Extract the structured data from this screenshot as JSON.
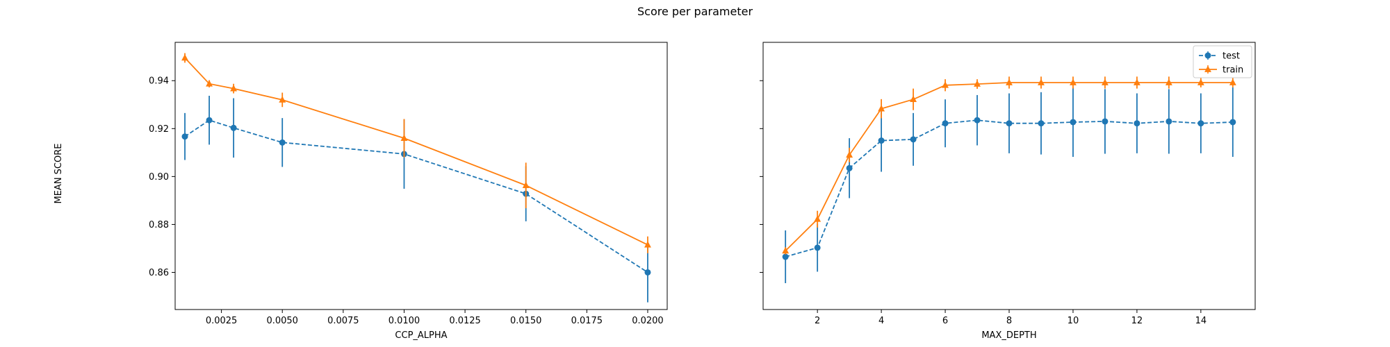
{
  "figure": {
    "title": "Score per parameter",
    "ylabel": "MEAN SCORE"
  },
  "colors": {
    "test": "#1f77b4",
    "train": "#ff7f0e"
  },
  "chart_data": [
    {
      "type": "line",
      "xlabel": "CCP_ALPHA",
      "ylabel": "MEAN SCORE",
      "xlim": [
        0.0006,
        0.0208
      ],
      "ylim": [
        0.8445,
        0.956
      ],
      "xticks": [
        0.0025,
        0.005,
        0.0075,
        0.01,
        0.0125,
        0.015,
        0.0175,
        0.02
      ],
      "xtick_labels": [
        "0.0025",
        "0.0050",
        "0.0075",
        "0.0100",
        "0.0125",
        "0.0150",
        "0.0175",
        "0.0200"
      ],
      "yticks": [
        0.86,
        0.88,
        0.9,
        0.92,
        0.94
      ],
      "ytick_labels": [
        "0.86",
        "0.88",
        "0.90",
        "0.92",
        "0.94"
      ],
      "legend": null,
      "grid": false,
      "x": [
        0.001,
        0.002,
        0.003,
        0.005,
        0.01,
        0.015,
        0.02
      ],
      "series": [
        {
          "name": "test",
          "marker": "circle",
          "linestyle": "dashed",
          "values": [
            0.9167,
            0.9235,
            0.9203,
            0.9142,
            0.9094,
            0.8928,
            0.86
          ],
          "errors": [
            0.0098,
            0.0102,
            0.0124,
            0.0102,
            0.0145,
            0.0115,
            0.0125
          ]
        },
        {
          "name": "train",
          "marker": "triangle",
          "linestyle": "solid",
          "values": [
            0.9495,
            0.9387,
            0.9367,
            0.932,
            0.916,
            0.8963,
            0.8715
          ],
          "errors": [
            0.002,
            0.0015,
            0.002,
            0.003,
            0.008,
            0.0095,
            0.0035
          ]
        }
      ]
    },
    {
      "type": "line",
      "xlabel": "MAX_DEPTH",
      "ylabel": "",
      "xlim": [
        0.3,
        15.7
      ],
      "ylim": [
        0.8445,
        0.956
      ],
      "xticks": [
        2,
        4,
        6,
        8,
        10,
        12,
        14
      ],
      "xtick_labels": [
        "2",
        "4",
        "6",
        "8",
        "10",
        "12",
        "14"
      ],
      "yticks": [
        0.86,
        0.88,
        0.9,
        0.92,
        0.94
      ],
      "ytick_labels": [
        "",
        "",
        "",
        "",
        ""
      ],
      "legend": "top-right",
      "grid": false,
      "x": [
        1,
        2,
        3,
        4,
        5,
        6,
        7,
        8,
        9,
        10,
        11,
        12,
        13,
        14,
        15
      ],
      "series": [
        {
          "name": "test",
          "marker": "circle",
          "linestyle": "dashed",
          "values": [
            0.8665,
            0.8703,
            0.9035,
            0.915,
            0.9155,
            0.9222,
            0.9235,
            0.9222,
            0.9222,
            0.9227,
            0.923,
            0.9222,
            0.923,
            0.9222,
            0.9227
          ],
          "errors": [
            0.011,
            0.01,
            0.0125,
            0.013,
            0.011,
            0.01,
            0.0105,
            0.0125,
            0.013,
            0.0145,
            0.0135,
            0.0125,
            0.0135,
            0.0125,
            0.0145
          ]
        },
        {
          "name": "train",
          "marker": "triangle",
          "linestyle": "solid",
          "values": [
            0.869,
            0.8822,
            0.909,
            0.9283,
            0.9322,
            0.9381,
            0.9386,
            0.9392,
            0.9392,
            0.9392,
            0.9392,
            0.9392,
            0.9392,
            0.9392,
            0.9392
          ],
          "errors": [
            0.0015,
            0.0035,
            0.003,
            0.004,
            0.0045,
            0.0025,
            0.002,
            0.0025,
            0.0025,
            0.0025,
            0.0025,
            0.0025,
            0.0025,
            0.002,
            0.002
          ]
        }
      ]
    }
  ]
}
